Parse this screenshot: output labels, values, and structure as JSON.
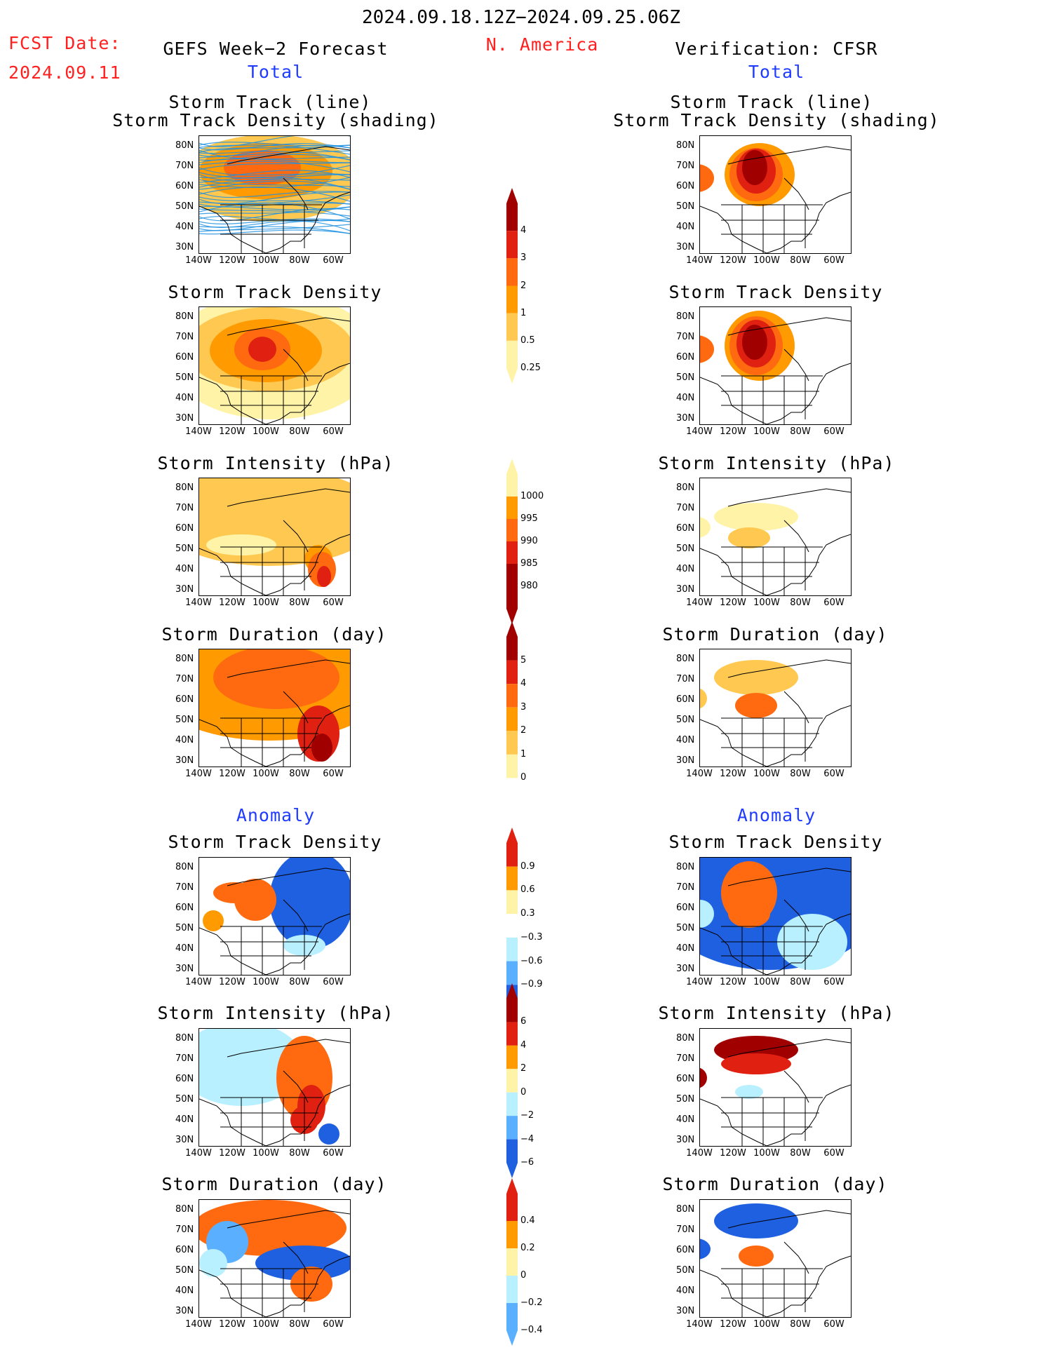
{
  "header": {
    "period": "2024.09.18.12Z−2024.09.25.06Z",
    "fcst_label": "FCST Date:",
    "fcst_date": "2024.09.11",
    "left_title": "GEFS Week−2 Forecast",
    "center_title": "N. America",
    "right_title": "Verification: CFSR",
    "total_left": "Total",
    "total_right": "Total",
    "anomaly_left": "Anomaly",
    "anomaly_right": "Anomaly"
  },
  "panel_titles": {
    "track_line": "Storm Track (line)",
    "track_density_shading": "Storm Track Density (shading)",
    "track_density": "Storm Track Density",
    "intensity": "Storm Intensity (hPa)",
    "duration": "Storm Duration (day)"
  },
  "axes": {
    "lat_ticks": [
      "80N",
      "70N",
      "60N",
      "50N",
      "40N",
      "30N"
    ],
    "lon_ticks": [
      "140W",
      "120W",
      "100W",
      "80W",
      "60W"
    ]
  },
  "colorbars": {
    "density_total": [
      "4",
      "3",
      "2",
      "1",
      "0.5",
      "0.25"
    ],
    "intensity_total": [
      "1000",
      "995",
      "990",
      "985",
      "980"
    ],
    "duration_total": [
      "5",
      "4",
      "3",
      "2",
      "1",
      "0"
    ],
    "density_anom": [
      "0.9",
      "0.6",
      "0.3",
      "−0.3",
      "−0.6",
      "−0.9"
    ],
    "intensity_anom": [
      "6",
      "4",
      "2",
      "0",
      "−2",
      "−4",
      "−6"
    ],
    "duration_anom": [
      "0.4",
      "0.2",
      "0",
      "−0.2",
      "−0.4"
    ]
  },
  "colors": {
    "red_text": "#ff2020",
    "blue_text": "#1f3cff",
    "pale_yellow": "#fff3a8",
    "light_orange": "#ffc850",
    "orange": "#ff9a00",
    "dark_orange": "#ff6a10",
    "red": "#e02010",
    "dark_red": "#a00000",
    "light_blue": "#b8f0ff",
    "mid_blue": "#5ab0ff",
    "blue": "#1f60e0",
    "track_line": "#1e90e0"
  },
  "chart_data": [
    {
      "type": "heatmap",
      "title": "Storm Track (line) Storm Track Density (shading)",
      "source": "GEFS Week−2 Forecast",
      "pattern": "broad orange density across Canada 45N–80N, peak over Hudson Bay region, blue storm track lines",
      "colorbar": [
        0.25,
        0.5,
        1,
        2,
        3,
        4
      ]
    },
    {
      "type": "heatmap",
      "title": "Storm Track (line) Storm Track Density (shading)",
      "source": "Verification: CFSR",
      "pattern": "dark red maximum over central Canada 50N–75N and Gulf of Alaska",
      "colorbar": [
        0.25,
        0.5,
        1,
        2,
        3,
        4
      ]
    },
    {
      "type": "heatmap",
      "title": "Storm Track Density",
      "source": "GEFS Week−2 Forecast",
      "colorbar": [
        0.25,
        0.5,
        1,
        2,
        3,
        4
      ]
    },
    {
      "type": "heatmap",
      "title": "Storm Track Density",
      "source": "Verification: CFSR",
      "colorbar": [
        0.25,
        0.5,
        1,
        2,
        3,
        4
      ]
    },
    {
      "type": "heatmap",
      "title": "Storm Intensity (hPa)",
      "source": "GEFS Week−2 Forecast",
      "colorbar": [
        980,
        985,
        990,
        995,
        1000
      ]
    },
    {
      "type": "heatmap",
      "title": "Storm Intensity (hPa)",
      "source": "Verification: CFSR",
      "colorbar": [
        980,
        985,
        990,
        995,
        1000
      ]
    },
    {
      "type": "heatmap",
      "title": "Storm Duration (day)",
      "source": "GEFS Week−2 Forecast",
      "colorbar": [
        0,
        1,
        2,
        3,
        4,
        5
      ]
    },
    {
      "type": "heatmap",
      "title": "Storm Duration (day)",
      "source": "Verification: CFSR",
      "colorbar": [
        0,
        1,
        2,
        3,
        4,
        5
      ]
    },
    {
      "type": "heatmap",
      "title": "Storm Track Density",
      "section": "Anomaly",
      "source": "GEFS Week−2 Forecast",
      "colorbar": [
        -0.9,
        -0.6,
        -0.3,
        0.3,
        0.6,
        0.9
      ]
    },
    {
      "type": "heatmap",
      "title": "Storm Track Density",
      "section": "Anomaly",
      "source": "Verification: CFSR",
      "colorbar": [
        -0.9,
        -0.6,
        -0.3,
        0.3,
        0.6,
        0.9
      ]
    },
    {
      "type": "heatmap",
      "title": "Storm Intensity (hPa)",
      "section": "Anomaly",
      "source": "GEFS Week−2 Forecast",
      "colorbar": [
        -6,
        -4,
        -2,
        0,
        2,
        4,
        6
      ]
    },
    {
      "type": "heatmap",
      "title": "Storm Intensity (hPa)",
      "section": "Anomaly",
      "source": "Verification: CFSR",
      "colorbar": [
        -6,
        -4,
        -2,
        0,
        2,
        4,
        6
      ]
    },
    {
      "type": "heatmap",
      "title": "Storm Duration (day)",
      "section": "Anomaly",
      "source": "GEFS Week−2 Forecast",
      "colorbar": [
        -0.4,
        -0.2,
        0,
        0.2,
        0.4
      ]
    },
    {
      "type": "heatmap",
      "title": "Storm Duration (day)",
      "section": "Anomaly",
      "source": "Verification: CFSR",
      "colorbar": [
        -0.4,
        -0.2,
        0,
        0.2,
        0.4
      ]
    }
  ]
}
